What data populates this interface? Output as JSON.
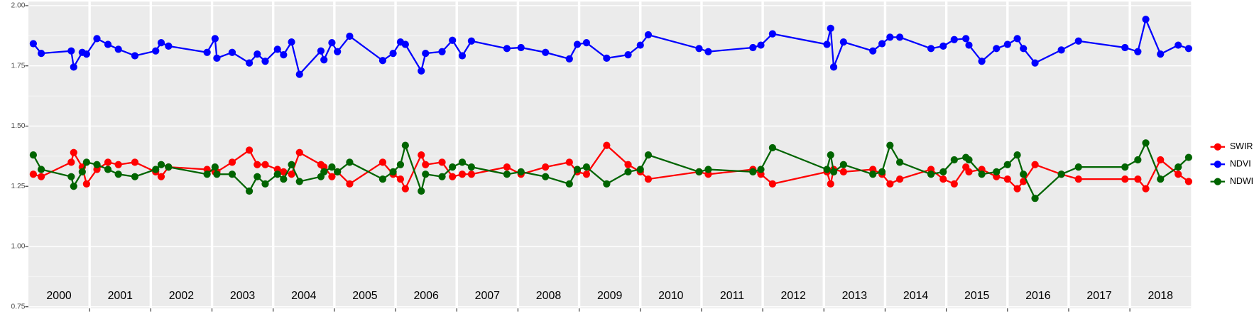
{
  "chart_data": {
    "type": "line",
    "x": [
      2000.08,
      2000.21,
      2000.7,
      2000.74,
      2000.88,
      2000.95,
      2001.12,
      2001.3,
      2001.47,
      2001.74,
      2002.08,
      2002.17,
      2002.29,
      2002.92,
      2003.05,
      2003.08,
      2003.33,
      2003.61,
      2003.74,
      2003.87,
      2004.07,
      2004.17,
      2004.3,
      2004.43,
      2004.78,
      2004.83,
      2004.96,
      2005.05,
      2005.25,
      2005.79,
      2005.96,
      2006.08,
      2006.16,
      2006.42,
      2006.49,
      2006.76,
      2006.93,
      2007.09,
      2007.24,
      2007.82,
      2008.05,
      2008.45,
      2008.84,
      2008.97,
      2009.12,
      2009.45,
      2009.8,
      2010.0,
      2010.13,
      2010.96,
      2011.11,
      2011.84,
      2011.97,
      2012.16,
      2013.05,
      2013.11,
      2013.16,
      2013.32,
      2013.8,
      2013.95,
      2014.08,
      2014.24,
      2014.75,
      2014.95,
      2015.13,
      2015.32,
      2015.37,
      2015.58,
      2015.82,
      2016.0,
      2016.16,
      2016.26,
      2016.45,
      2016.88,
      2017.16,
      2017.92,
      2018.13,
      2018.26,
      2018.5,
      2018.79,
      2018.96
    ],
    "series": [
      {
        "name": "SWIR",
        "color": "#ff0000",
        "values": [
          1.3,
          1.29,
          1.35,
          1.39,
          1.33,
          1.26,
          1.32,
          1.35,
          1.34,
          1.35,
          1.31,
          1.29,
          1.33,
          1.32,
          1.31,
          1.31,
          1.35,
          1.4,
          1.34,
          1.34,
          1.32,
          1.31,
          1.3,
          1.39,
          1.34,
          1.33,
          1.29,
          1.31,
          1.26,
          1.35,
          1.3,
          1.28,
          1.24,
          1.38,
          1.34,
          1.35,
          1.29,
          1.3,
          1.3,
          1.33,
          1.3,
          1.33,
          1.35,
          1.31,
          1.3,
          1.42,
          1.34,
          1.31,
          1.28,
          1.31,
          1.3,
          1.32,
          1.3,
          1.26,
          1.31,
          1.26,
          1.32,
          1.31,
          1.32,
          1.3,
          1.26,
          1.28,
          1.32,
          1.28,
          1.26,
          1.33,
          1.31,
          1.32,
          1.29,
          1.28,
          1.24,
          1.27,
          1.34,
          1.3,
          1.28,
          1.28,
          1.28,
          1.24,
          1.36,
          1.3,
          1.27
        ]
      },
      {
        "name": "NDVI",
        "color": "#0000ff",
        "values": [
          1.842,
          1.802,
          1.812,
          1.745,
          1.806,
          1.799,
          1.863,
          1.839,
          1.819,
          1.792,
          1.812,
          1.846,
          1.832,
          1.806,
          1.863,
          1.782,
          1.806,
          1.762,
          1.799,
          1.769,
          1.819,
          1.796,
          1.849,
          1.715,
          1.812,
          1.775,
          1.846,
          1.809,
          1.873,
          1.772,
          1.802,
          1.849,
          1.839,
          1.729,
          1.802,
          1.809,
          1.856,
          1.792,
          1.853,
          1.822,
          1.826,
          1.806,
          1.779,
          1.839,
          1.846,
          1.782,
          1.796,
          1.836,
          1.879,
          1.822,
          1.809,
          1.826,
          1.836,
          1.883,
          1.839,
          1.906,
          1.745,
          1.849,
          1.812,
          1.842,
          1.869,
          1.869,
          1.822,
          1.832,
          1.859,
          1.863,
          1.836,
          1.769,
          1.822,
          1.839,
          1.863,
          1.822,
          1.762,
          1.816,
          1.853,
          1.826,
          1.809,
          1.943,
          1.799,
          1.836,
          1.822
        ]
      },
      {
        "name": "NDWI",
        "color": "#006400",
        "values": [
          1.38,
          1.32,
          1.29,
          1.25,
          1.31,
          1.35,
          1.34,
          1.32,
          1.3,
          1.29,
          1.32,
          1.34,
          1.33,
          1.3,
          1.33,
          1.3,
          1.3,
          1.23,
          1.29,
          1.26,
          1.3,
          1.28,
          1.34,
          1.27,
          1.29,
          1.31,
          1.33,
          1.31,
          1.35,
          1.28,
          1.31,
          1.34,
          1.42,
          1.23,
          1.3,
          1.29,
          1.33,
          1.35,
          1.33,
          1.3,
          1.31,
          1.29,
          1.26,
          1.32,
          1.33,
          1.26,
          1.31,
          1.32,
          1.38,
          1.31,
          1.32,
          1.31,
          1.32,
          1.41,
          1.32,
          1.38,
          1.31,
          1.34,
          1.3,
          1.31,
          1.42,
          1.35,
          1.3,
          1.31,
          1.36,
          1.37,
          1.36,
          1.3,
          1.31,
          1.34,
          1.38,
          1.3,
          1.2,
          1.3,
          1.33,
          1.33,
          1.36,
          1.43,
          1.28,
          1.33,
          1.37
        ]
      }
    ],
    "xlim": [
      2000,
      2019
    ],
    "xticks": [
      {
        "value": 2000.5,
        "label": "2000"
      },
      {
        "value": 2001.5,
        "label": "2001"
      },
      {
        "value": 2002.5,
        "label": "2002"
      },
      {
        "value": 2003.5,
        "label": "2003"
      },
      {
        "value": 2004.5,
        "label": "2004"
      },
      {
        "value": 2005.5,
        "label": "2005"
      },
      {
        "value": 2006.5,
        "label": "2006"
      },
      {
        "value": 2007.5,
        "label": "2007"
      },
      {
        "value": 2008.5,
        "label": "2008"
      },
      {
        "value": 2009.5,
        "label": "2009"
      },
      {
        "value": 2010.5,
        "label": "2010"
      },
      {
        "value": 2011.5,
        "label": "2011"
      },
      {
        "value": 2012.5,
        "label": "2012"
      },
      {
        "value": 2013.5,
        "label": "2013"
      },
      {
        "value": 2014.5,
        "label": "2014"
      },
      {
        "value": 2015.5,
        "label": "2015"
      },
      {
        "value": 2016.5,
        "label": "2016"
      },
      {
        "value": 2017.5,
        "label": "2017"
      },
      {
        "value": 2018.5,
        "label": "2018"
      }
    ],
    "year_boundaries": [
      2001,
      2002,
      2003,
      2004,
      2005,
      2006,
      2007,
      2008,
      2009,
      2010,
      2011,
      2012,
      2013,
      2014,
      2015,
      2016,
      2017,
      2018
    ],
    "ylim": [
      0.75,
      2.0
    ],
    "yticks": [
      0.75,
      {
        "value": 1.0,
        "label": "1.00"
      },
      1.25,
      {
        "value": 1.5,
        "label": "1.50"
      },
      1.75,
      {
        "value": 2.0,
        "label": "2.00"
      }
    ],
    "grid": true,
    "legend": "right"
  }
}
